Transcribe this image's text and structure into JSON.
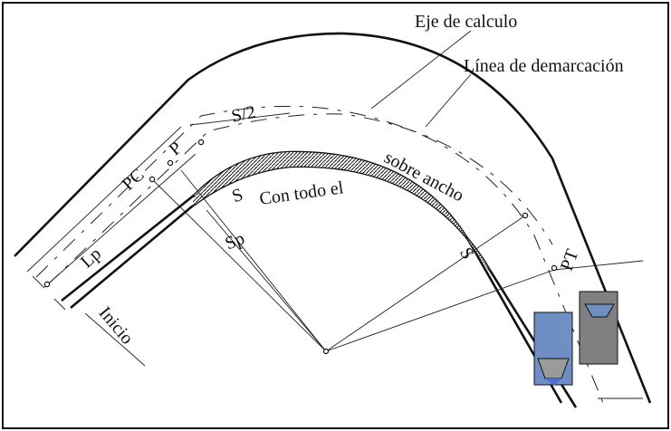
{
  "labels": {
    "eje": "Eje de calculo",
    "linea": "Línea de demarcación",
    "s_half": "S/2",
    "p": "P",
    "pc": "PC",
    "s_top": "S",
    "lp": "Lp",
    "sp": "Sp",
    "inicio": "Inicio",
    "con": "Con todo el",
    "sobre": "sobre ancho",
    "s_right": "S",
    "pt": "PT"
  },
  "colors": {
    "line": "#111111",
    "vehicle_blue": "#6f8fc4",
    "vehicle_gray": "#808080",
    "windshield_blue": "#4a6fd0",
    "windshield_gray": "#9a9a9a"
  }
}
